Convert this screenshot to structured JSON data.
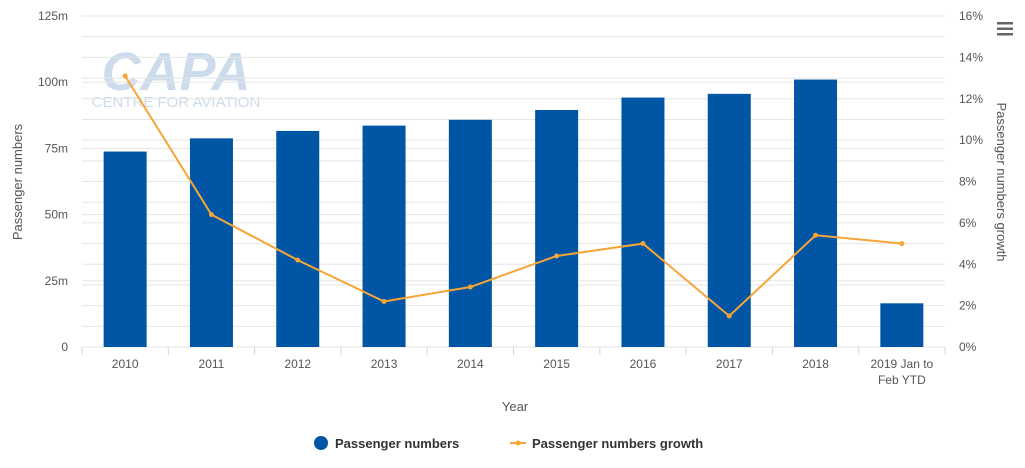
{
  "watermark": {
    "logo_text": "CAPA",
    "tagline": "CENTRE FOR AVIATION"
  },
  "menu": {
    "icon": "hamburger-menu-icon"
  },
  "colors": {
    "bar": "#0055A5",
    "line": "#F7A535",
    "grid": "#e6e6e6",
    "axis_text": "#555555",
    "legend_text": "#333333",
    "watermark": "#c8d9ea"
  },
  "chart_data": {
    "type": "bar",
    "categories": [
      "2010",
      "2011",
      "2012",
      "2013",
      "2014",
      "2015",
      "2016",
      "2017",
      "2018",
      "2019 Jan to Feb YTD"
    ],
    "category_lines": [
      [
        "2010"
      ],
      [
        "2011"
      ],
      [
        "2012"
      ],
      [
        "2013"
      ],
      [
        "2014"
      ],
      [
        "2015"
      ],
      [
        "2016"
      ],
      [
        "2017"
      ],
      [
        "2018"
      ],
      [
        "2019 Jan to",
        "Feb YTD"
      ]
    ],
    "series": [
      {
        "name": "Passenger numbers",
        "type": "bar",
        "axis": "left",
        "values": [
          73.8,
          78.8,
          81.6,
          83.6,
          85.8,
          89.5,
          94.2,
          95.6,
          101.0,
          16.5
        ]
      },
      {
        "name": "Passenger numbers growth",
        "type": "line",
        "axis": "right",
        "values": [
          13.1,
          6.4,
          4.2,
          2.2,
          2.9,
          4.4,
          5.0,
          1.5,
          5.4,
          5.0
        ]
      }
    ],
    "xlabel": "Year",
    "ylabel": "Passenger numbers",
    "y2label": "Passenger numbers growth",
    "ylim": [
      0,
      125
    ],
    "y2lim": [
      0,
      16
    ],
    "yticks": [
      "0",
      "25m",
      "50m",
      "75m",
      "100m",
      "125m"
    ],
    "y2ticks": [
      "0%",
      "2%",
      "4%",
      "6%",
      "8%",
      "10%",
      "12%",
      "14%",
      "16%"
    ],
    "grid": true,
    "legend": "bottom-center"
  }
}
